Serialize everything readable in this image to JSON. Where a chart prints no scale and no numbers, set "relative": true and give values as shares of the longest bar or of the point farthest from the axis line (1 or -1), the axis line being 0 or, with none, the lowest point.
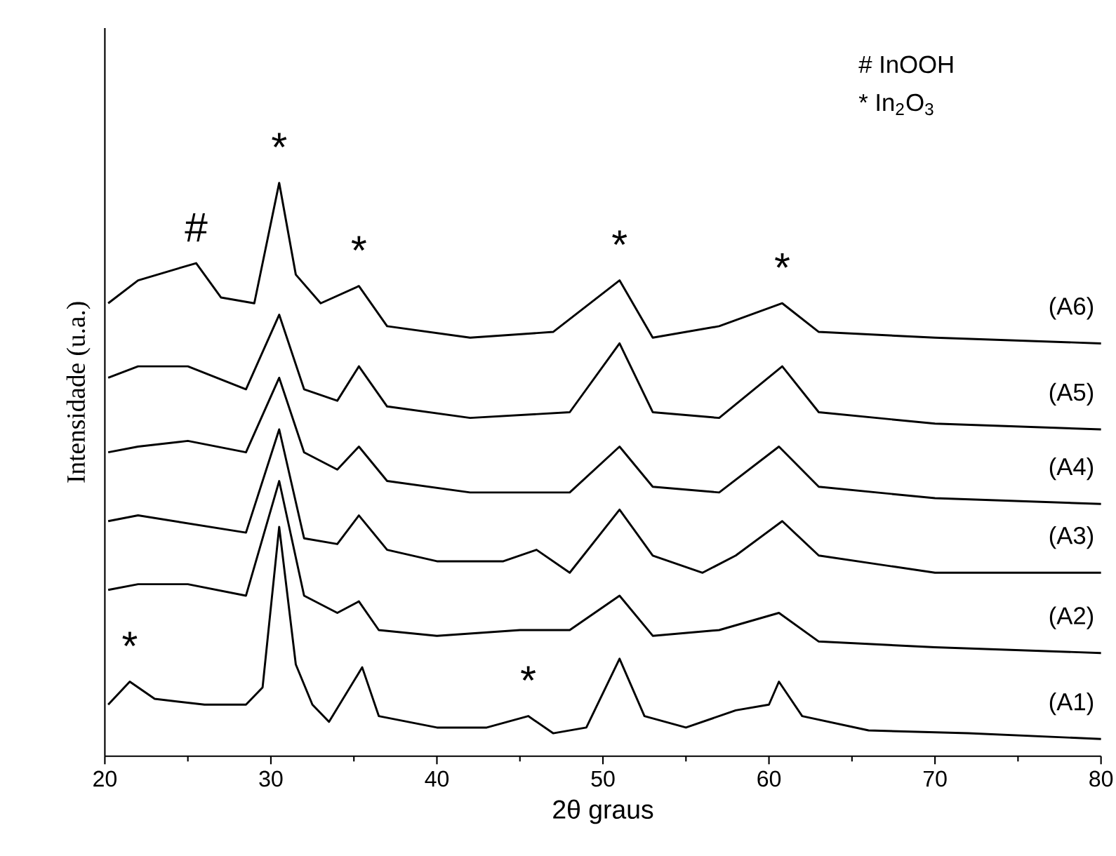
{
  "chart_data": {
    "type": "line",
    "relative": true,
    "xlabel": "2θ graus",
    "ylabel": "Intensidade (u.a.)",
    "xlim": [
      20,
      80
    ],
    "xticks": [
      20,
      30,
      40,
      50,
      60,
      70,
      80
    ],
    "marker": "none",
    "line_style": "solid",
    "grid": false,
    "series": [
      {
        "name": "(A1)",
        "color": "#000000",
        "x": [
          20.2,
          21.5,
          23,
          26,
          28.5,
          29.5,
          30.5,
          31.5,
          32.5,
          33.5,
          35.5,
          36.5,
          40,
          43,
          45.5,
          47,
          49,
          51,
          52.5,
          55,
          58,
          60,
          60.6,
          62,
          66,
          72,
          80
        ],
        "values": [
          0.09,
          0.13,
          0.1,
          0.09,
          0.09,
          0.12,
          0.4,
          0.16,
          0.09,
          0.06,
          0.155,
          0.07,
          0.05,
          0.05,
          0.07,
          0.04,
          0.05,
          0.17,
          0.07,
          0.05,
          0.08,
          0.09,
          0.13,
          0.07,
          0.045,
          0.04,
          0.03
        ]
      },
      {
        "name": "(A2)",
        "color": "#000000",
        "x": [
          20.2,
          22,
          25,
          28.5,
          30.5,
          32,
          34,
          35.3,
          36.5,
          40,
          45,
          48,
          51,
          53,
          57,
          60.6,
          63,
          70,
          80
        ],
        "values": [
          0.29,
          0.3,
          0.3,
          0.28,
          0.48,
          0.28,
          0.25,
          0.27,
          0.22,
          0.21,
          0.22,
          0.22,
          0.28,
          0.21,
          0.22,
          0.25,
          0.2,
          0.19,
          0.18
        ]
      },
      {
        "name": "(A3)",
        "color": "#000000",
        "x": [
          20.2,
          22,
          28.5,
          30.5,
          32,
          34,
          35.3,
          37,
          40,
          44,
          46,
          48,
          51,
          53,
          56,
          58,
          60.8,
          63,
          70,
          80
        ],
        "values": [
          0.41,
          0.42,
          0.39,
          0.57,
          0.38,
          0.37,
          0.42,
          0.36,
          0.34,
          0.34,
          0.36,
          0.32,
          0.43,
          0.35,
          0.32,
          0.35,
          0.41,
          0.35,
          0.32,
          0.32
        ]
      },
      {
        "name": "(A4)",
        "color": "#000000",
        "x": [
          20.2,
          22,
          25,
          28.5,
          30.5,
          32,
          34,
          35.3,
          37,
          42,
          48,
          51,
          53,
          57,
          60.6,
          63,
          70,
          80
        ],
        "values": [
          0.53,
          0.54,
          0.55,
          0.53,
          0.66,
          0.53,
          0.5,
          0.54,
          0.48,
          0.46,
          0.46,
          0.54,
          0.47,
          0.46,
          0.54,
          0.47,
          0.45,
          0.44
        ]
      },
      {
        "name": "(A5)",
        "color": "#000000",
        "x": [
          20.2,
          22,
          25,
          28.5,
          30.5,
          32,
          34,
          35.3,
          37,
          42,
          48,
          51,
          53,
          57,
          60.8,
          63,
          70,
          80
        ],
        "values": [
          0.66,
          0.68,
          0.68,
          0.64,
          0.77,
          0.64,
          0.62,
          0.68,
          0.61,
          0.59,
          0.6,
          0.72,
          0.6,
          0.59,
          0.68,
          0.6,
          0.58,
          0.57
        ]
      },
      {
        "name": "(A6)",
        "color": "#000000",
        "x": [
          20.2,
          22,
          25.5,
          27,
          29,
          30.5,
          31.5,
          33,
          35.3,
          37,
          42,
          47,
          51,
          53,
          57,
          60.8,
          63,
          70,
          80
        ],
        "values": [
          0.79,
          0.83,
          0.86,
          0.8,
          0.79,
          1.0,
          0.84,
          0.79,
          0.82,
          0.75,
          0.73,
          0.74,
          0.83,
          0.73,
          0.75,
          0.79,
          0.74,
          0.73,
          0.72
        ]
      }
    ],
    "annotations": [
      {
        "text": "#",
        "x": 25.5,
        "y": 0.86
      },
      {
        "text": "*",
        "x": 30.5,
        "y": 1.0
      },
      {
        "text": "*",
        "x": 35.3,
        "y": 0.82
      },
      {
        "text": "*",
        "x": 51,
        "y": 0.83
      },
      {
        "text": "*",
        "x": 60.8,
        "y": 0.79
      },
      {
        "text": "*",
        "x": 21.5,
        "y": 0.13
      },
      {
        "text": "*",
        "x": 45.5,
        "y": 0.07
      },
      "# InOOH",
      "* In$_{2}$O$_{3}$"
    ]
  }
}
